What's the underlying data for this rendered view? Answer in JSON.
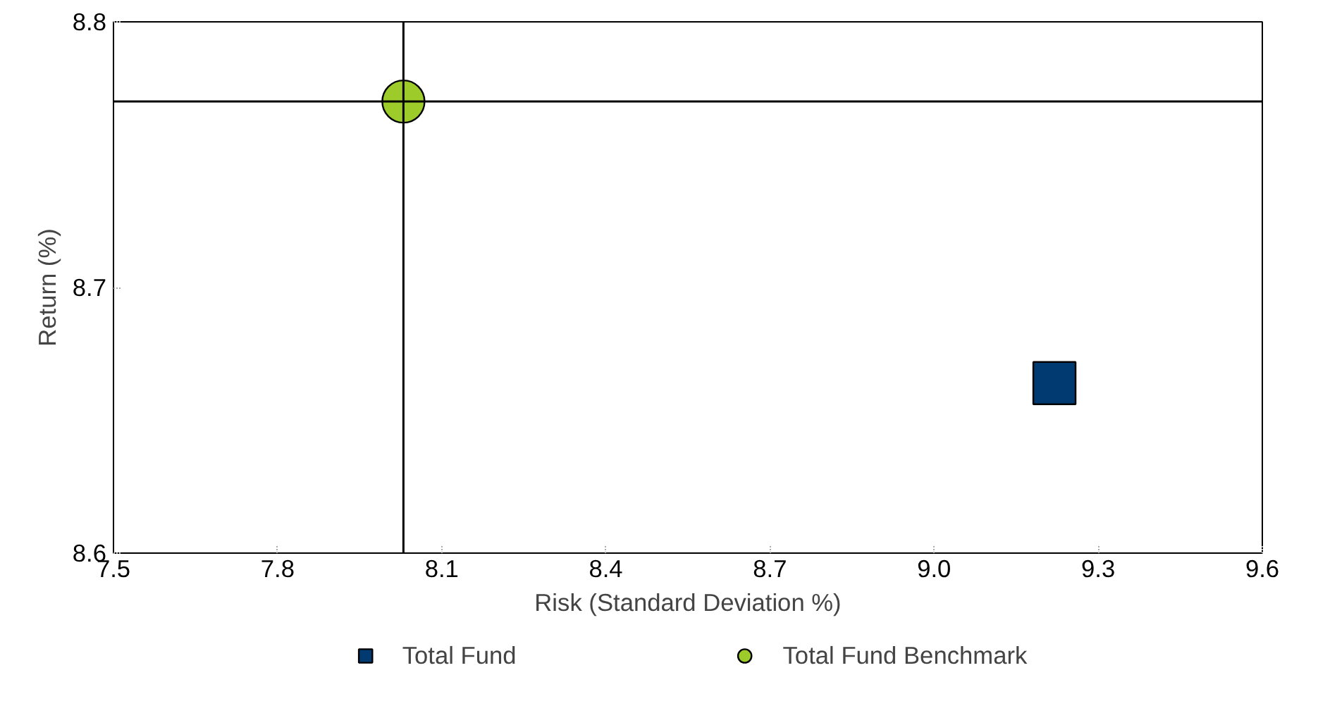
{
  "chart_data": {
    "type": "scatter",
    "xlabel": "Risk (Standard Deviation %)",
    "ylabel": "Return (%)",
    "xlim": [
      7.5,
      9.6
    ],
    "xticks": [
      7.5,
      7.8,
      8.1,
      8.4,
      8.7,
      {
        "value": 9.0,
        "label": "9.0"
      },
      9.3,
      9.6
    ],
    "ylim": [
      8.6,
      8.8
    ],
    "yticks": [
      8.6,
      8.7,
      8.8
    ],
    "series": [
      {
        "name": "Total Fund",
        "color": "#003a70",
        "marker": "square",
        "x": [
          9.22
        ],
        "values": [
          8.664
        ]
      },
      {
        "name": "Total Fund Benchmark",
        "color": "#9dcb2a",
        "marker": "circle",
        "x": [
          8.03
        ],
        "values": [
          8.77
        ]
      }
    ],
    "ref_lines": [
      {
        "axis": "x",
        "value": 8.03,
        "color": "#000000"
      },
      {
        "axis": "y",
        "value": 8.77,
        "color": "#000000"
      }
    ],
    "grid": false,
    "legend": "bottom"
  }
}
